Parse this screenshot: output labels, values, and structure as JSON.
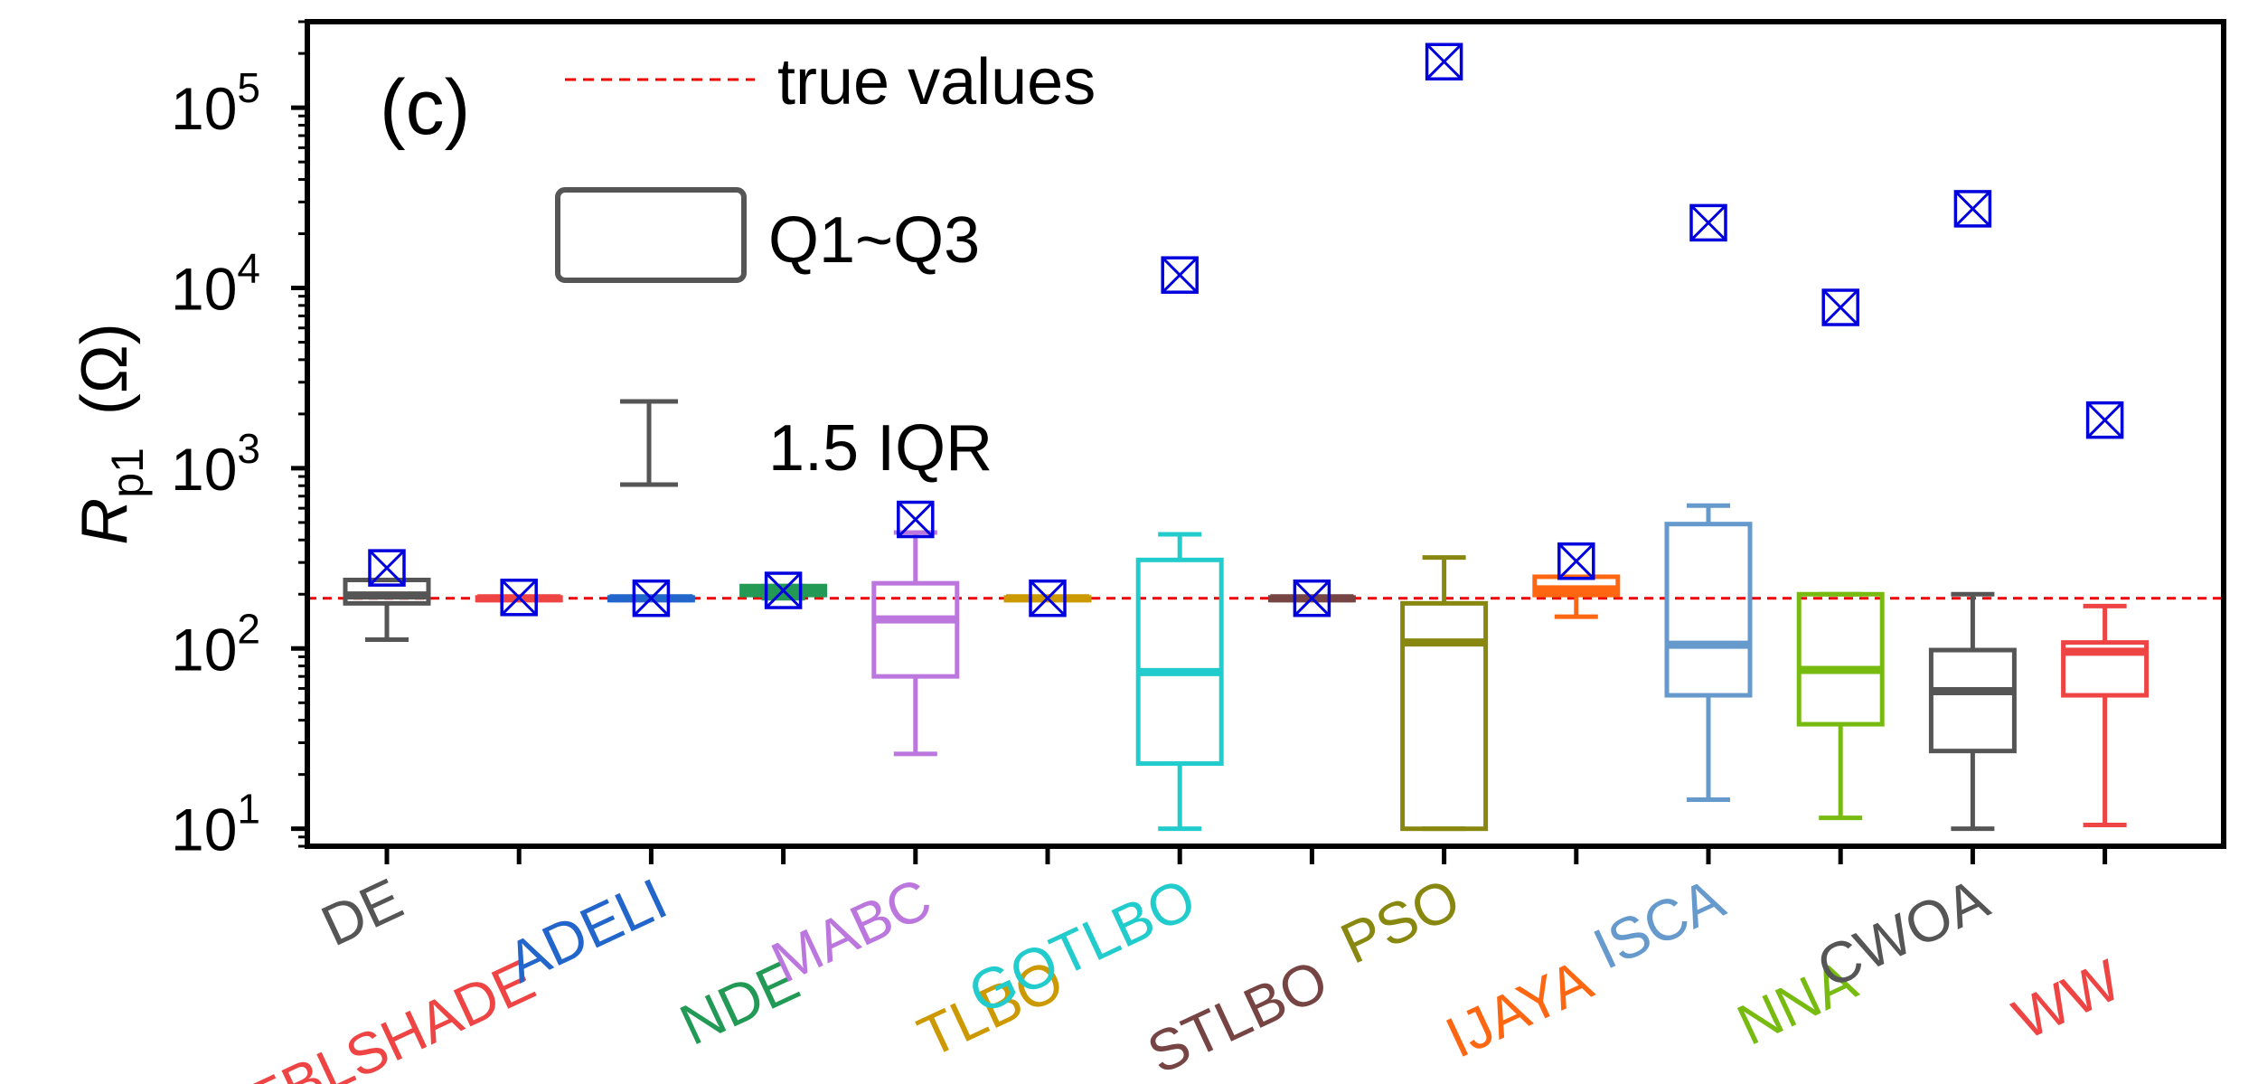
{
  "chart_data": {
    "type": "box",
    "panel_label": "(c)",
    "ylabel": "R",
    "ylabel_subscript": "p1",
    "ylabel_unit": "(Ω)",
    "yscale": "log",
    "ylim": [
      8,
      300000
    ],
    "yticks": [
      {
        "value": 10,
        "base": "10",
        "exp": "1"
      },
      {
        "value": 100,
        "base": "10",
        "exp": "2"
      },
      {
        "value": 1000,
        "base": "10",
        "exp": "3"
      },
      {
        "value": 10000,
        "base": "10",
        "exp": "4"
      },
      {
        "value": 100000,
        "base": "10",
        "exp": "5"
      }
    ],
    "true_value": 190,
    "legend": {
      "true_values_label": "true values",
      "box_label": "Q1~Q3",
      "whisker_label": "1.5 IQR"
    },
    "categories": [
      {
        "name": "DE",
        "color": "#555555",
        "whisker_low": 112,
        "q1": 178,
        "median": 197,
        "q3": 240,
        "whisker_high": 240,
        "outlier": 280
      },
      {
        "name": "EBLSHADE",
        "color": "#ee4444",
        "whisker_low": 188,
        "q1": 188,
        "median": 190,
        "q3": 192,
        "whisker_high": 192,
        "outlier": 192
      },
      {
        "name": "ADELI",
        "color": "#2266cc",
        "whisker_low": 188,
        "q1": 188,
        "median": 190,
        "q3": 192,
        "whisker_high": 192,
        "outlier": 190
      },
      {
        "name": "NDE",
        "color": "#229955",
        "whisker_low": 190,
        "q1": 198,
        "median": 210,
        "q3": 222,
        "whisker_high": 222,
        "outlier": 210
      },
      {
        "name": "MABC",
        "color": "#bb77dd",
        "whisker_low": 26,
        "q1": 70,
        "median": 145,
        "q3": 230,
        "whisker_high": 440,
        "outlier": 520
      },
      {
        "name": "TLBO",
        "color": "#cc9900",
        "whisker_low": 188,
        "q1": 188,
        "median": 190,
        "q3": 192,
        "whisker_high": 192,
        "outlier": 190
      },
      {
        "name": "GOTLBO",
        "color": "#22cccc",
        "whisker_low": 10,
        "q1": 23,
        "median": 74,
        "q3": 310,
        "whisker_high": 430,
        "outlier": 11800
      },
      {
        "name": "STLBO",
        "color": "#774444",
        "whisker_low": 188,
        "q1": 188,
        "median": 190,
        "q3": 192,
        "whisker_high": 192,
        "outlier": 190
      },
      {
        "name": "PSO",
        "color": "#888811",
        "whisker_low": 10,
        "q1": 10,
        "median": 108,
        "q3": 178,
        "whisker_high": 320,
        "outlier": 180000
      },
      {
        "name": "IJAYA",
        "color": "#ff6611",
        "whisker_low": 150,
        "q1": 198,
        "median": 213,
        "q3": 250,
        "whisker_high": 250,
        "outlier": 305
      },
      {
        "name": "ISCA",
        "color": "#6699cc",
        "whisker_low": 14.5,
        "q1": 55,
        "median": 105,
        "q3": 490,
        "whisker_high": 620,
        "outlier": 23000
      },
      {
        "name": "NNA",
        "color": "#77bb11",
        "whisker_low": 11.5,
        "q1": 38,
        "median": 76,
        "q3": 200,
        "whisker_high": 200,
        "outlier": 7800
      },
      {
        "name": "CWOA",
        "color": "#555555",
        "whisker_low": 10,
        "q1": 27,
        "median": 58,
        "q3": 98,
        "whisker_high": 200,
        "outlier": 27500
      },
      {
        "name": "WW",
        "color": "#ee4444",
        "whisker_low": 10.5,
        "q1": 55,
        "median": 96,
        "q3": 108,
        "whisker_high": 172,
        "outlier": 1850
      }
    ],
    "colors": {
      "outlier_marker": "#0000dd",
      "true_line": "#ee0000",
      "axis": "#000000",
      "legend_box": "#555555"
    }
  }
}
